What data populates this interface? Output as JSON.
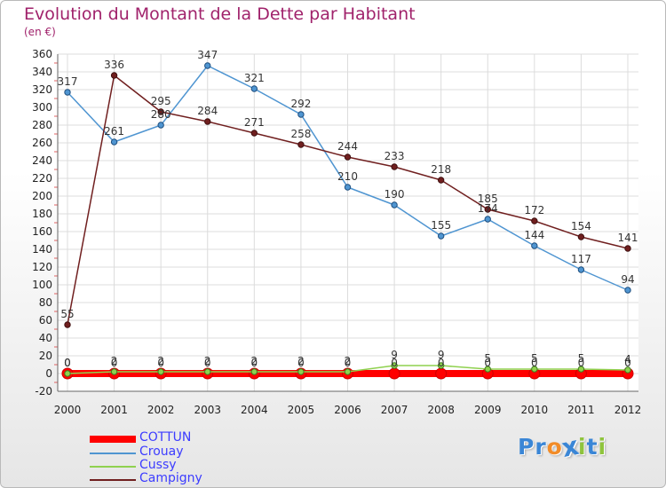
{
  "chart_data": {
    "type": "line",
    "title": "Evolution du Montant de la Dette par Habitant",
    "subtitle": "(en €)",
    "x": [
      "2000",
      "2001",
      "2002",
      "2003",
      "2004",
      "2005",
      "2006",
      "2007",
      "2008",
      "2009",
      "2010",
      "2011",
      "2012"
    ],
    "ylim": [
      -20,
      360
    ],
    "yticks": [
      -20,
      0,
      20,
      40,
      60,
      80,
      100,
      120,
      140,
      160,
      180,
      200,
      220,
      240,
      260,
      280,
      300,
      320,
      340,
      360
    ],
    "grid": true,
    "legend_position": "bottom-left",
    "series": [
      {
        "name": "COTTUN",
        "color": "#ff0000",
        "values": [
          0,
          0,
          0,
          0,
          0,
          0,
          0,
          0,
          0,
          0,
          0,
          0,
          0
        ]
      },
      {
        "name": "Crouay",
        "color": "#4f95d1",
        "values": [
          317,
          261,
          280,
          347,
          321,
          292,
          210,
          190,
          155,
          174,
          144,
          117,
          94
        ]
      },
      {
        "name": "Cussy",
        "color": "#8fd14f",
        "values": [
          0,
          2,
          2,
          2,
          2,
          2,
          2,
          9,
          9,
          5,
          5,
          5,
          4
        ]
      },
      {
        "name": "Campigny",
        "color": "#701f1f",
        "values": [
          55,
          336,
          295,
          284,
          271,
          258,
          244,
          233,
          218,
          185,
          172,
          154,
          141
        ]
      }
    ]
  },
  "logo": {
    "text": "Proxiti",
    "colors": [
      "#3a86d6",
      "#3a86d6",
      "#f28c28",
      "#3a86d6",
      "#8fc43d",
      "#3a86d6",
      "#8fc43d"
    ]
  }
}
